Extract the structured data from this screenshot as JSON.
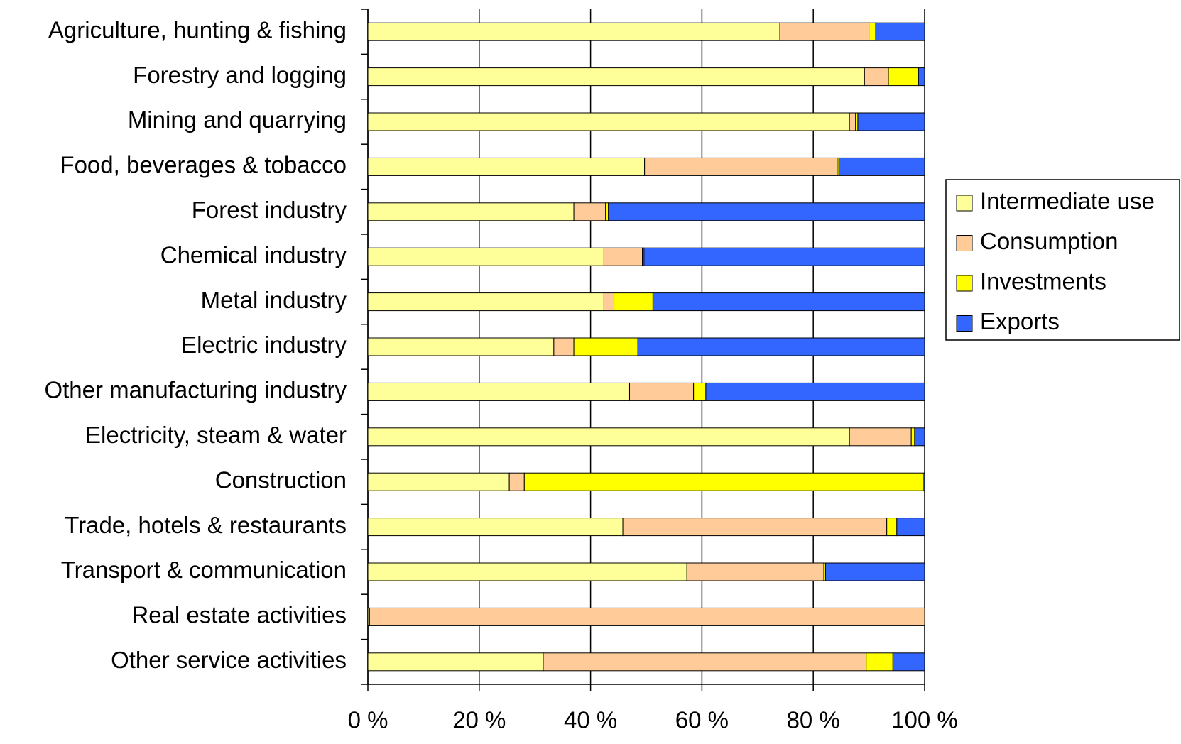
{
  "chart_data": {
    "type": "stacked-barh",
    "categories": [
      "Agriculture, hunting & fishing",
      "Forestry and logging",
      "Mining and quarrying",
      "Food, beverages & tobacco",
      "Forest industry",
      "Chemical industry",
      "Metal industry",
      "Electric industry",
      "Other manufacturing industry",
      "Electricity, steam & water",
      "Construction",
      "Trade, hotels & restaurants",
      "Transport & communication",
      "Real estate activities",
      "Other service activities"
    ],
    "series": [
      {
        "name": "Intermediate use",
        "color": "#ffff99",
        "values": [
          74,
          89.2,
          86.5,
          49.7,
          37,
          42.4,
          42.4,
          33.4,
          47,
          86.5,
          25.4,
          45.8,
          57.3,
          0.3,
          31.5
        ]
      },
      {
        "name": "Consumption",
        "color": "#ffcc99",
        "values": [
          16,
          4.3,
          1.1,
          34.6,
          5.7,
          6.9,
          1.8,
          3.6,
          11.5,
          11.1,
          2.7,
          47.4,
          24.6,
          99.7,
          58
        ]
      },
      {
        "name": "Investments",
        "color": "#ffff00",
        "values": [
          1.2,
          5.4,
          0.4,
          0.3,
          0.5,
          0.3,
          7,
          11.5,
          2.2,
          0.6,
          71.6,
          1.8,
          0.3,
          0,
          4.8
        ]
      },
      {
        "name": "Exports",
        "color": "#3366ff",
        "values": [
          8.8,
          1.1,
          12,
          15.4,
          56.8,
          50.4,
          48.8,
          51.5,
          39.3,
          1.8,
          0.3,
          5,
          17.8,
          0,
          5.7
        ]
      }
    ],
    "xlim": [
      0,
      100
    ],
    "xticks": [
      {
        "value": 0,
        "label": "0 %"
      },
      {
        "value": 20,
        "label": "20 %"
      },
      {
        "value": 40,
        "label": "40 %"
      },
      {
        "value": 60,
        "label": "60 %"
      },
      {
        "value": 80,
        "label": "80 %"
      },
      {
        "value": 100,
        "label": "100 %"
      }
    ],
    "grid": true,
    "legend": "right"
  }
}
